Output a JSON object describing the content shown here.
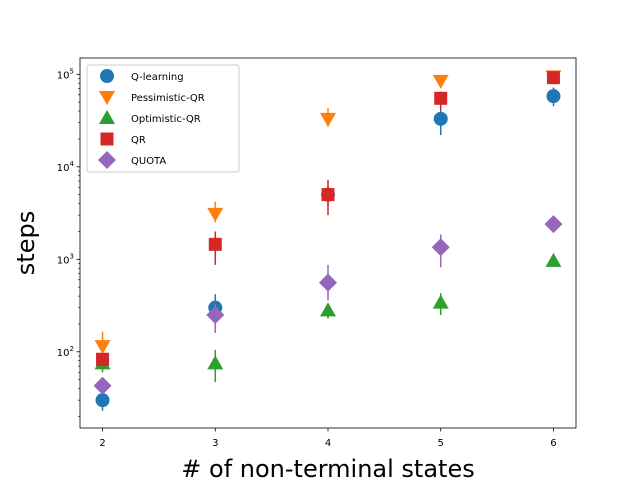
{
  "chart_data": {
    "type": "scatter",
    "title": "",
    "xlabel": "# of non-terminal states",
    "ylabel": "steps",
    "yscale": "log",
    "x": [
      2,
      3,
      4,
      5,
      6
    ],
    "xlim": [
      1.8,
      6.2
    ],
    "ylim": [
      15,
      150000
    ],
    "x_ticks": [
      2,
      3,
      4,
      5,
      6
    ],
    "y_ticks": [
      {
        "value": 100,
        "base": "10",
        "exp": "2"
      },
      {
        "value": 1000,
        "base": "10",
        "exp": "3"
      },
      {
        "value": 10000,
        "base": "10",
        "exp": "4"
      },
      {
        "value": 100000,
        "base": "10",
        "exp": "5"
      }
    ],
    "grid": false,
    "legend_position": "top-left",
    "series": [
      {
        "name": "Q-learning",
        "marker": "circle",
        "color": "#1f77b4",
        "values": [
          30,
          300,
          5000,
          33000,
          58000
        ],
        "err_low": [
          23,
          230,
          3700,
          22000,
          45000
        ],
        "err_high": [
          34,
          420,
          6000,
          45000,
          72000
        ]
      },
      {
        "name": "Pessimistic-QR",
        "marker": "triangle-down",
        "color": "#ff7f0e",
        "values": [
          115,
          3100,
          33000,
          85000,
          95000
        ],
        "err_low": [
          100,
          2500,
          27000,
          75000,
          85000
        ],
        "err_high": [
          165,
          4200,
          43000,
          95000,
          105000
        ]
      },
      {
        "name": "Optimistic-QR",
        "marker": "triangle-up",
        "color": "#2ca02c",
        "values": [
          75,
          75,
          280,
          340,
          960
        ],
        "err_low": [
          60,
          47,
          230,
          250,
          900
        ],
        "err_high": [
          88,
          105,
          310,
          430,
          1020
        ]
      },
      {
        "name": "QR",
        "marker": "square",
        "color": "#d62728",
        "values": [
          83,
          1450,
          5000,
          55000,
          92000
        ],
        "err_low": [
          70,
          870,
          3000,
          42000,
          80000
        ],
        "err_high": [
          96,
          2000,
          7200,
          65000,
          100000
        ]
      },
      {
        "name": "QUOTA",
        "marker": "diamond",
        "color": "#9467bd",
        "values": [
          43,
          250,
          560,
          1350,
          2400
        ],
        "err_low": [
          36,
          160,
          360,
          820,
          2200
        ],
        "err_high": [
          50,
          330,
          870,
          1850,
          2600
        ]
      }
    ]
  }
}
